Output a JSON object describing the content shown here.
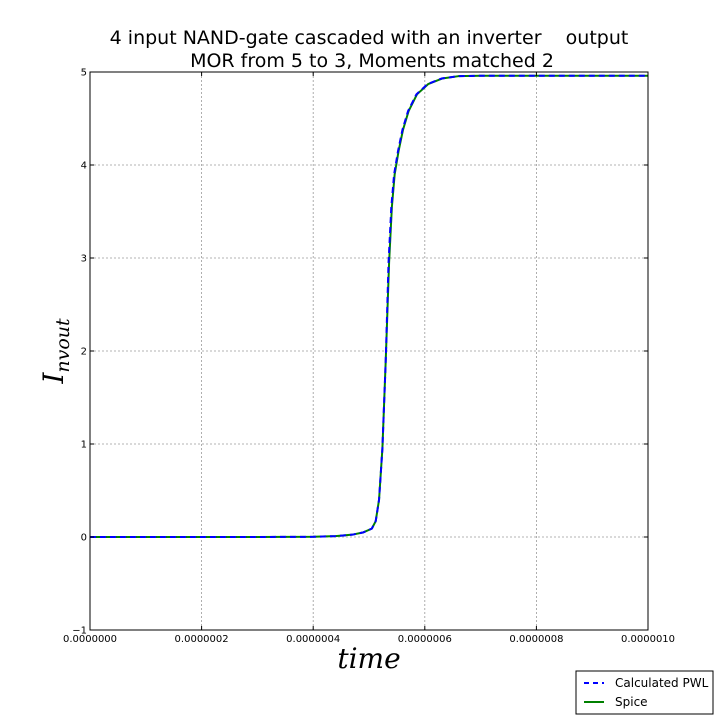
{
  "chart_data": {
    "type": "line",
    "title": [
      "4 input NAND-gate cascaded with an inverter    output",
      "MOR from 5 to 3, Moments matched 2"
    ],
    "xlabel": "time",
    "ylabel_base": "I",
    "ylabel_sub": "nvout",
    "xlim": [
      0,
      1e-06
    ],
    "ylim": [
      -1,
      5
    ],
    "xticks": [
      "0.0000000",
      "0.0000002",
      "0.0000004",
      "0.0000006",
      "0.0000008",
      "0.0000010"
    ],
    "yticks": [
      "−1",
      "0",
      "1",
      "2",
      "3",
      "4",
      "5"
    ],
    "grid": true,
    "legend_position": "bottom-right, outside plot",
    "series": [
      {
        "name": "Calculated PWL",
        "color": "#0000ff",
        "style": "dashed",
        "x": [
          0,
          3e-07,
          4e-07,
          4.4e-07,
          4.7e-07,
          4.9e-07,
          5.05e-07,
          5.12e-07,
          5.18e-07,
          5.24e-07,
          5.3e-07,
          5.35e-07,
          5.4e-07,
          5.45e-07,
          5.52e-07,
          5.6e-07,
          5.7e-07,
          5.85e-07,
          6.05e-07,
          6.3e-07,
          6.6e-07,
          7e-07,
          8e-07,
          1e-06
        ],
        "y": [
          0,
          0,
          0.002,
          0.01,
          0.025,
          0.05,
          0.09,
          0.17,
          0.4,
          0.95,
          1.9,
          2.95,
          3.55,
          3.9,
          4.15,
          4.38,
          4.58,
          4.76,
          4.87,
          4.93,
          4.955,
          4.96,
          4.96,
          4.96
        ]
      },
      {
        "name": "Spice",
        "color": "#008000",
        "style": "solid",
        "x": [
          0,
          3e-07,
          4e-07,
          4.4e-07,
          4.7e-07,
          4.9e-07,
          5.05e-07,
          5.12e-07,
          5.18e-07,
          5.24e-07,
          5.3e-07,
          5.36e-07,
          5.41e-07,
          5.46e-07,
          5.53e-07,
          5.61e-07,
          5.71e-07,
          5.86e-07,
          6.06e-07,
          6.31e-07,
          6.6e-07,
          7e-07,
          8e-07,
          1e-06
        ],
        "y": [
          0,
          0,
          0.002,
          0.01,
          0.025,
          0.05,
          0.09,
          0.17,
          0.4,
          0.95,
          1.9,
          2.95,
          3.55,
          3.9,
          4.15,
          4.38,
          4.58,
          4.76,
          4.87,
          4.93,
          4.955,
          4.96,
          4.96,
          4.96
        ]
      }
    ]
  }
}
